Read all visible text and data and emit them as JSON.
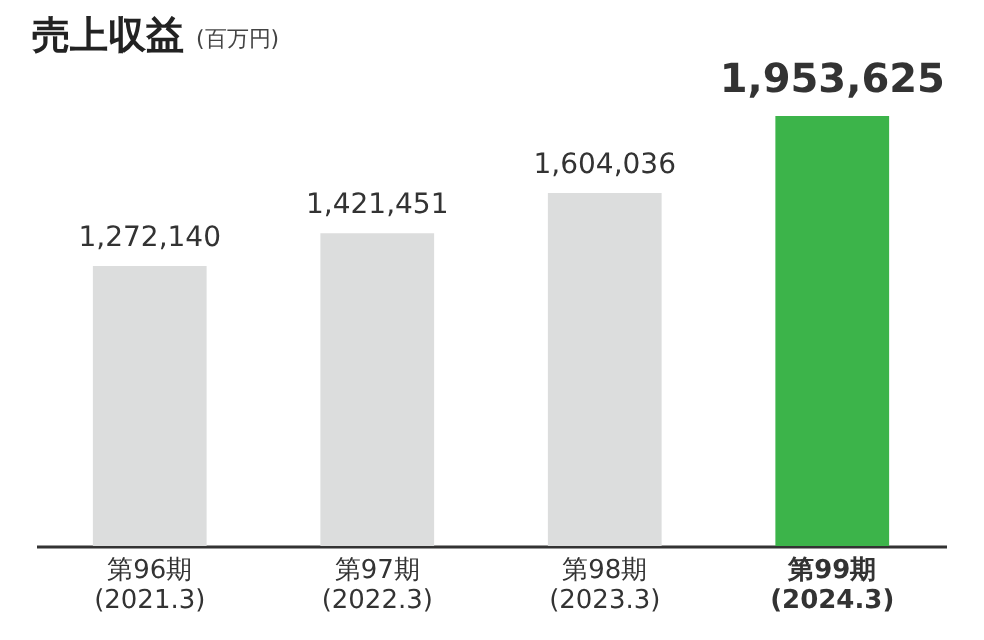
{
  "chart_data": {
    "type": "bar",
    "title": "売上収益",
    "subtitle": "(百万円)",
    "categories": [
      "第96期\n(2021.3)",
      "第97期\n(2022.3)",
      "第98期\n(2023.3)",
      "第99期\n(2024.3)"
    ],
    "values": [
      1272140,
      1421451,
      1604036,
      1953625
    ],
    "colors": [
      "#dcdddd",
      "#dcdddd",
      "#dcdddd",
      "#3cb44a"
    ],
    "value_labels": [
      "1,272,140",
      "1,421,451",
      "1,604,036",
      "1,953,625"
    ]
  }
}
